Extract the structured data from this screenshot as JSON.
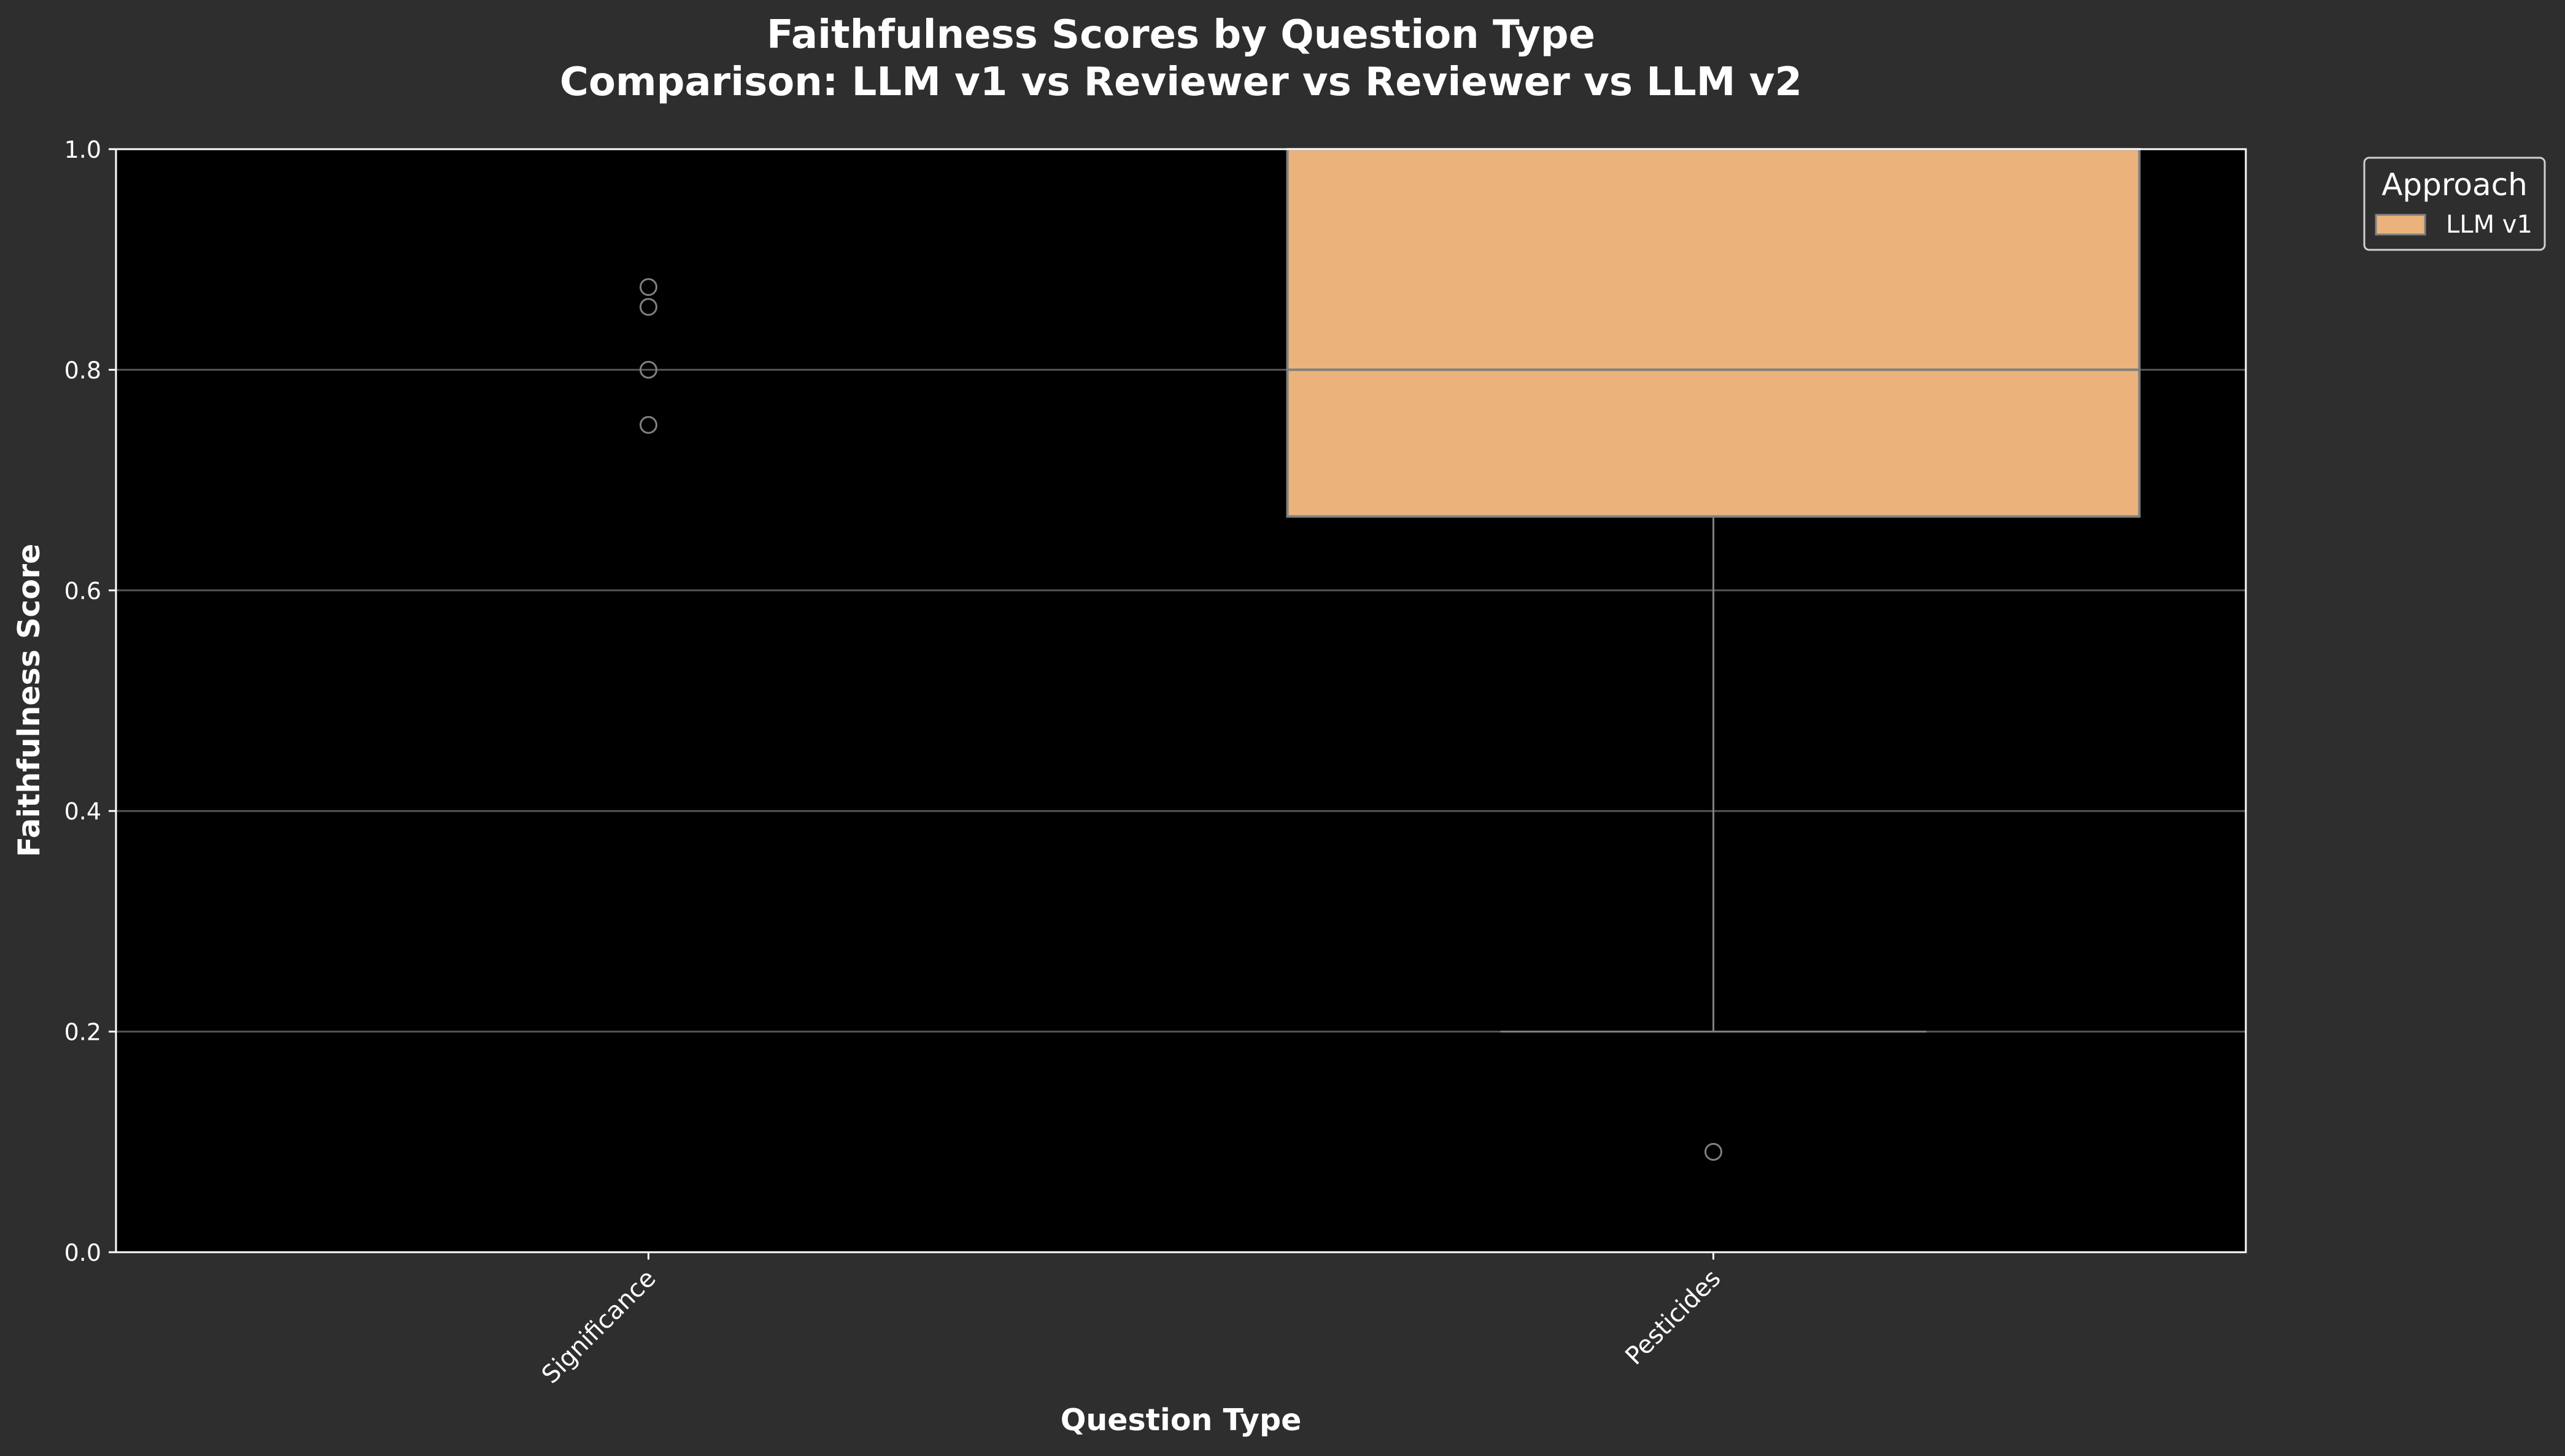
{
  "chart_data": {
    "type": "box",
    "title": "Faithfulness Scores by Question Type",
    "subtitle": "Comparison: LLM v1 vs Reviewer vs Reviewer vs LLM v2",
    "xlabel": "Question Type",
    "ylabel": "Faithfulness Score",
    "ylim": [
      0.0,
      1.0
    ],
    "yticks": [
      "0.0",
      "0.2",
      "0.4",
      "0.6",
      "0.8",
      "1.0"
    ],
    "grid": true,
    "categories": [
      "Significance",
      "Pesticides"
    ],
    "legend": {
      "title": "Approach",
      "placement": "outside-top-right",
      "entries": [
        "LLM v1"
      ]
    },
    "series": [
      {
        "name": "LLM v1",
        "color": "#ebb37b",
        "boxes": [
          {
            "category": "Significance",
            "q1": null,
            "median": null,
            "q3": null,
            "whisker_low": null,
            "whisker_high": null,
            "outliers": [
              0.875,
              0.857,
              0.8,
              0.75
            ]
          },
          {
            "category": "Pesticides",
            "q1": 0.667,
            "median": 0.8,
            "q3": 1.0,
            "whisker_low": 0.2,
            "whisker_high": 1.0,
            "outliers": [
              0.091
            ]
          }
        ]
      }
    ],
    "colors": {
      "background": "#2e2e2e",
      "plot_background": "#000000",
      "grid": "#555555",
      "box_edge": "#808080",
      "text": "#ffffff"
    }
  }
}
